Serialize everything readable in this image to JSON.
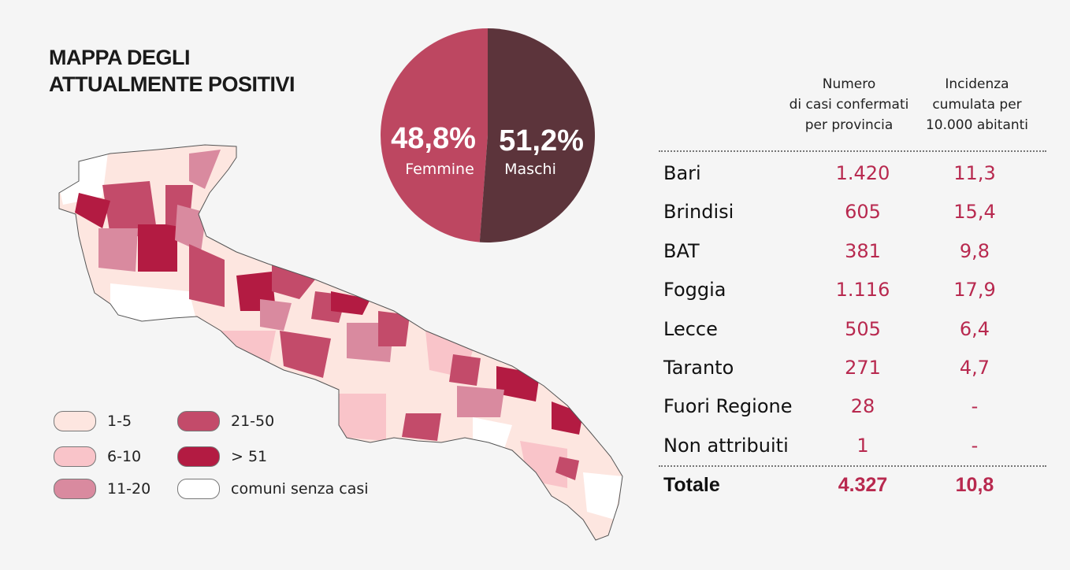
{
  "title_line1": "MAPPA DEGLI",
  "title_line2": "ATTUALMENTE POSITIVI",
  "colors": {
    "accent": "#b8294f",
    "femmine": "#bd4761",
    "maschi": "#5c343b",
    "c1_5": "#fde6e0",
    "c6_10": "#f9c4c9",
    "c11_20": "#d98a9f",
    "c21_50": "#c34b6a",
    "c51": "#b31b42",
    "none": "#ffffff"
  },
  "chart_data": {
    "type": "pie",
    "slices": [
      {
        "label": "Femmine",
        "value": 48.8,
        "display": "48,8%"
      },
      {
        "label": "Maschi",
        "value": 51.2,
        "display": "51,2%"
      }
    ]
  },
  "legend": [
    {
      "label": "1-5",
      "color": "#fde6e0"
    },
    {
      "label": "6-10",
      "color": "#f9c4c9"
    },
    {
      "label": "11-20",
      "color": "#d98a9f"
    },
    {
      "label": "21-50",
      "color": "#c34b6a"
    },
    {
      "label": "> 51",
      "color": "#b31b42"
    },
    {
      "label": "comuni senza casi",
      "color": "#ffffff"
    }
  ],
  "table": {
    "headers": [
      [
        "Numero",
        "di casi confermati",
        "per provincia"
      ],
      [
        "Incidenza",
        "cumulata per",
        "10.000 abitanti"
      ]
    ],
    "rows": [
      [
        "Bari",
        "1.420",
        "11,3"
      ],
      [
        "Brindisi",
        "605",
        "15,4"
      ],
      [
        "BAT",
        "381",
        "9,8"
      ],
      [
        "Foggia",
        "1.116",
        "17,9"
      ],
      [
        "Lecce",
        "505",
        "6,4"
      ],
      [
        "Taranto",
        "271",
        "4,7"
      ],
      [
        "Fuori Regione",
        "28",
        "-"
      ],
      [
        "Non attribuiti",
        "1",
        "-"
      ]
    ],
    "total": [
      "Totale",
      "4.327",
      "10,8"
    ]
  }
}
